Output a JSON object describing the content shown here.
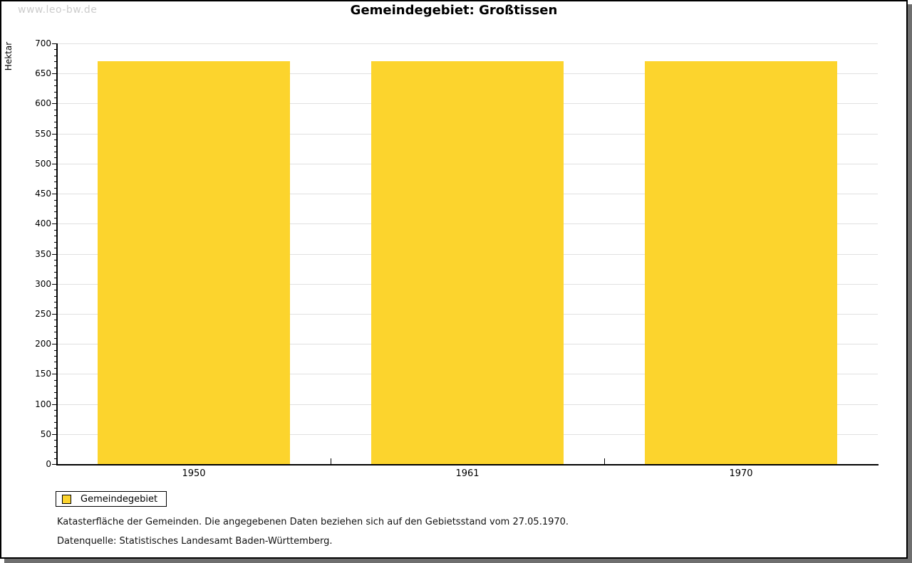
{
  "watermark": "www.leo-bw.de",
  "title": "Gemeindegebiet: Großtissen",
  "chart_data": {
    "type": "bar",
    "categories": [
      "1950",
      "1961",
      "1970"
    ],
    "values": [
      670,
      670,
      670
    ],
    "title": "Gemeindegebiet: Großtissen",
    "xlabel": "",
    "ylabel": "Hektar",
    "ylim": [
      0,
      700
    ],
    "ytick_step": 50,
    "minor_tick_step": 10,
    "grid": true,
    "legend_position": "bottom-left",
    "bar_color": "#fcd42d"
  },
  "legend": {
    "items": [
      {
        "label": "Gemeindegebiet",
        "color": "#fcd42d"
      }
    ]
  },
  "footer": {
    "line1": "Katasterfläche der Gemeinden. Die angegebenen Daten beziehen sich auf den Gebietsstand vom 27.05.1970.",
    "line2": "Datenquelle: Statistisches Landesamt Baden-Württemberg."
  },
  "colors": {
    "bar": "#fcd42d",
    "grid": "#e0e0e0",
    "axis": "#000000",
    "watermark": "#cccccc",
    "frame_border": "#000000",
    "frame_shadow": "#6f6f6f"
  }
}
